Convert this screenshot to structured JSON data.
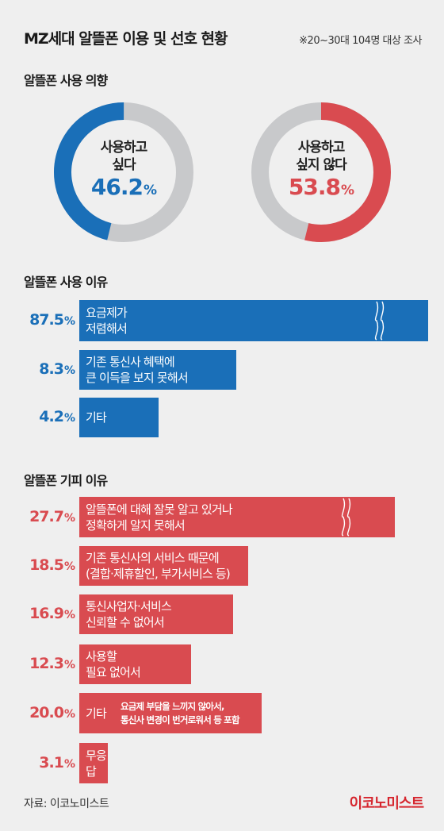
{
  "header": {
    "title": "MZ세대 알뜰폰 이용 및 선호 현황",
    "note": "※20~30대 104명 대상 조사"
  },
  "colors": {
    "blue": "#1a6fb8",
    "red": "#d94b50",
    "gray": "#c8c9cb",
    "brand": "#d6262e"
  },
  "chart_data": [
    {
      "type": "pie",
      "title": "알뜰폰 사용 의향",
      "charts": [
        {
          "label": "사용하고\n싶다",
          "value": 46.2,
          "unit": "%",
          "color": "#1a6fb8"
        },
        {
          "label": "사용하고\n싶지 않다",
          "value": 53.8,
          "unit": "%",
          "color": "#d94b50"
        }
      ]
    },
    {
      "type": "bar",
      "title": "알뜰폰 사용 이유",
      "color": "#1a6fb8",
      "bars": [
        {
          "category": "요금제가\n저렴해서",
          "value": 87.5,
          "value_label": "87.5",
          "broken": true
        },
        {
          "category": "기존 통신사 혜택에\n큰 이득을 보지 못해서",
          "value": 8.3,
          "value_label": "8.3",
          "broken": false
        },
        {
          "category": "기타",
          "value": 4.2,
          "value_label": "4.2",
          "broken": false
        }
      ]
    },
    {
      "type": "bar",
      "title": "알뜰폰 기피 이유",
      "color": "#d94b50",
      "bars": [
        {
          "category": "알뜰폰에 대해 잘못 알고 있거나\n정확하게 알지 못해서",
          "value": 27.7,
          "value_label": "27.7",
          "broken": true
        },
        {
          "category": "기존 통신사의 서비스 때문에\n(결합·제휴할인, 부가서비스 등)",
          "value": 18.5,
          "value_label": "18.5",
          "broken": false
        },
        {
          "category": "통신사업자·서비스\n신뢰할 수 없어서",
          "value": 16.9,
          "value_label": "16.9",
          "broken": false
        },
        {
          "category": "사용할\n필요 없어서",
          "value": 12.3,
          "value_label": "12.3",
          "broken": false
        },
        {
          "category": "기타",
          "note": "요금제 부담을 느끼지 않아서,\n통신사 변경이 번거로워서 등 포함",
          "value": 20.0,
          "value_label": "20.0",
          "broken": false
        },
        {
          "category": "무응답",
          "value": 3.1,
          "value_label": "3.1",
          "broken": false
        }
      ]
    }
  ],
  "pct_symbol": "%",
  "footer": {
    "source": "자료: 이코노미스트",
    "brand": "이코노미스트"
  }
}
